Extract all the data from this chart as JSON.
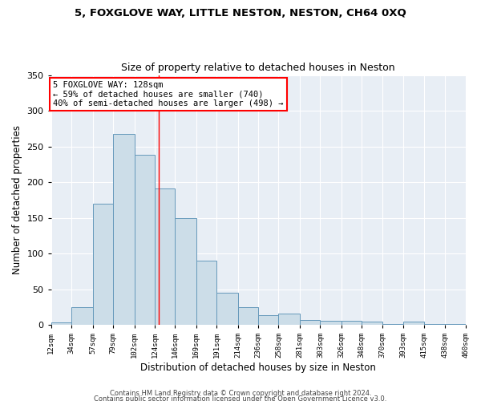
{
  "title1": "5, FOXGLOVE WAY, LITTLE NESTON, NESTON, CH64 0XQ",
  "title2": "Size of property relative to detached houses in Neston",
  "xlabel": "Distribution of detached houses by size in Neston",
  "ylabel": "Number of detached properties",
  "bar_color": "#ccdde8",
  "bar_edge_color": "#6699bb",
  "background_color": "#e8eef5",
  "annotation_line1": "5 FOXGLOVE WAY: 128sqm",
  "annotation_line2": "← 59% of detached houses are smaller (740)",
  "annotation_line3": "40% of semi-detached houses are larger (498) →",
  "vline_x": 128,
  "vline_color": "red",
  "footer1": "Contains HM Land Registry data © Crown copyright and database right 2024.",
  "footer2": "Contains public sector information licensed under the Open Government Licence v3.0.",
  "bin_edges": [
    12,
    34,
    57,
    79,
    102,
    124,
    146,
    169,
    191,
    214,
    236,
    258,
    281,
    303,
    326,
    348,
    370,
    393,
    415,
    438,
    460
  ],
  "counts": [
    3,
    25,
    170,
    267,
    238,
    191,
    150,
    90,
    45,
    25,
    14,
    16,
    7,
    6,
    6,
    5,
    1,
    5,
    1,
    1
  ],
  "ylim": [
    0,
    350
  ],
  "yticks": [
    0,
    50,
    100,
    150,
    200,
    250,
    300,
    350
  ],
  "tick_labels": [
    "12sqm",
    "34sqm",
    "57sqm",
    "79sqm",
    "102sqm",
    "124sqm",
    "146sqm",
    "169sqm",
    "191sqm",
    "214sqm",
    "236sqm",
    "258sqm",
    "281sqm",
    "303sqm",
    "326sqm",
    "348sqm",
    "370sqm",
    "393sqm",
    "415sqm",
    "438sqm",
    "460sqm"
  ]
}
